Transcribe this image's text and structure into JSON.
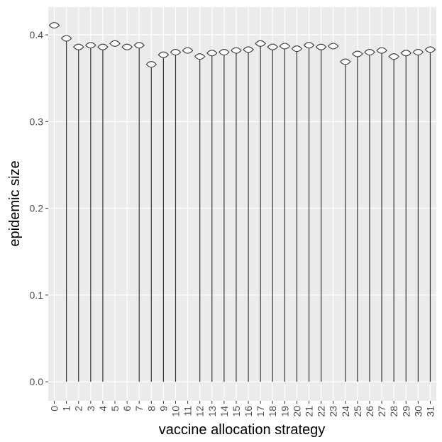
{
  "chart_data": {
    "type": "violin",
    "x_label": "vaccine allocation strategy",
    "y_label": "epidemic size",
    "categories": [
      "0",
      "1",
      "2",
      "3",
      "4",
      "5",
      "6",
      "7",
      "8",
      "9",
      "10",
      "11",
      "12",
      "13",
      "14",
      "15",
      "16",
      "17",
      "18",
      "19",
      "20",
      "21",
      "22",
      "23",
      "24",
      "25",
      "26",
      "27",
      "28",
      "29",
      "30",
      "31"
    ],
    "values": [
      0.411,
      0.396,
      0.386,
      0.388,
      0.386,
      0.39,
      0.386,
      0.388,
      0.366,
      0.377,
      0.38,
      0.382,
      0.375,
      0.379,
      0.38,
      0.382,
      0.383,
      0.39,
      0.386,
      0.387,
      0.384,
      0.388,
      0.386,
      0.387,
      0.369,
      0.378,
      0.38,
      0.382,
      0.375,
      0.379,
      0.38,
      0.383
    ],
    "min": [
      null,
      0,
      0,
      0,
      0,
      null,
      null,
      0,
      0,
      0,
      0,
      null,
      0,
      0,
      0,
      0,
      0,
      0,
      0,
      0,
      0,
      0,
      0,
      null,
      0,
      0,
      0,
      0,
      0,
      0,
      0,
      0
    ],
    "ylim": [
      -0.022,
      0.432
    ],
    "yticks": [
      {
        "value": 0,
        "label": "0.0"
      },
      0.1,
      0.2,
      0.3,
      0.4
    ],
    "grid": true
  }
}
